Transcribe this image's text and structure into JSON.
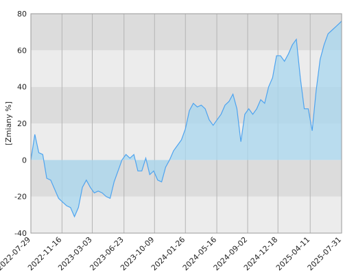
{
  "chart_data": {
    "type": "area",
    "y_label": "[Zmiany %]",
    "x": [
      "2022-07-29",
      "2022-08-12",
      "2022-08-26",
      "2022-09-09",
      "2022-09-23",
      "2022-10-07",
      "2022-10-21",
      "2022-11-04",
      "2022-11-18",
      "2022-12-02",
      "2022-12-16",
      "2022-12-30",
      "2023-01-13",
      "2023-01-27",
      "2023-02-10",
      "2023-02-24",
      "2023-03-10",
      "2023-03-24",
      "2023-04-07",
      "2023-04-21",
      "2023-05-05",
      "2023-05-19",
      "2023-06-02",
      "2023-06-16",
      "2023-06-30",
      "2023-07-14",
      "2023-07-28",
      "2023-08-11",
      "2023-08-25",
      "2023-09-08",
      "2023-09-22",
      "2023-10-06",
      "2023-10-20",
      "2023-11-03",
      "2023-11-17",
      "2023-12-01",
      "2023-12-15",
      "2023-12-29",
      "2024-01-12",
      "2024-01-26",
      "2024-02-09",
      "2024-02-23",
      "2024-03-08",
      "2024-03-22",
      "2024-04-05",
      "2024-04-19",
      "2024-05-03",
      "2024-05-17",
      "2024-05-31",
      "2024-06-14",
      "2024-06-28",
      "2024-07-12",
      "2024-07-26",
      "2024-08-09",
      "2024-08-23",
      "2024-09-06",
      "2024-09-20",
      "2024-10-04",
      "2024-10-18",
      "2024-11-01",
      "2024-11-15",
      "2024-11-29",
      "2024-12-13",
      "2024-12-27",
      "2025-01-10",
      "2025-01-24",
      "2025-02-07",
      "2025-02-21",
      "2025-03-07",
      "2025-03-21",
      "2025-04-04",
      "2025-04-18",
      "2025-05-02",
      "2025-05-16",
      "2025-05-30",
      "2025-06-13",
      "2025-06-27",
      "2025-07-11",
      "2025-07-25",
      "2025-07-31"
    ],
    "series": [
      {
        "color": "#4da3ef",
        "fill": "#a8d7ef",
        "values": [
          0,
          14,
          4,
          3,
          -10,
          -11,
          -16,
          -21,
          -23,
          -25,
          -26,
          -31,
          -26,
          -15,
          -11,
          -15,
          -18,
          -17,
          -18,
          -20,
          -21,
          -12,
          -6,
          0,
          3,
          1,
          3,
          -6,
          -6,
          1,
          -8,
          -6,
          -11,
          -12,
          -4,
          0,
          5,
          8,
          11,
          17,
          27,
          31,
          29,
          30,
          28,
          22,
          19,
          22,
          25,
          30,
          32,
          36,
          28,
          10,
          25,
          28,
          25,
          28,
          33,
          31,
          40,
          45,
          57,
          57,
          54,
          58,
          63,
          66,
          45,
          28,
          28,
          16,
          38,
          55,
          63,
          69,
          71,
          73,
          75,
          76
        ]
      }
    ],
    "xlim": [
      "2022-07-29",
      "2025-07-31"
    ],
    "xticks": [
      "2022-07-29",
      "2022-11-16",
      "2023-03-03",
      "2023-06-23",
      "2023-10-09",
      "2024-01-26",
      "2024-05-16",
      "2024-09-02",
      "2024-12-18",
      "2025-04-11",
      "2025-07-31"
    ],
    "ylim": [
      -40,
      80
    ],
    "yticks": [
      -40,
      -20,
      0,
      20,
      40,
      60,
      80
    ],
    "bands": [
      "#ececec",
      "#dcdcdc"
    ],
    "grid": true
  }
}
